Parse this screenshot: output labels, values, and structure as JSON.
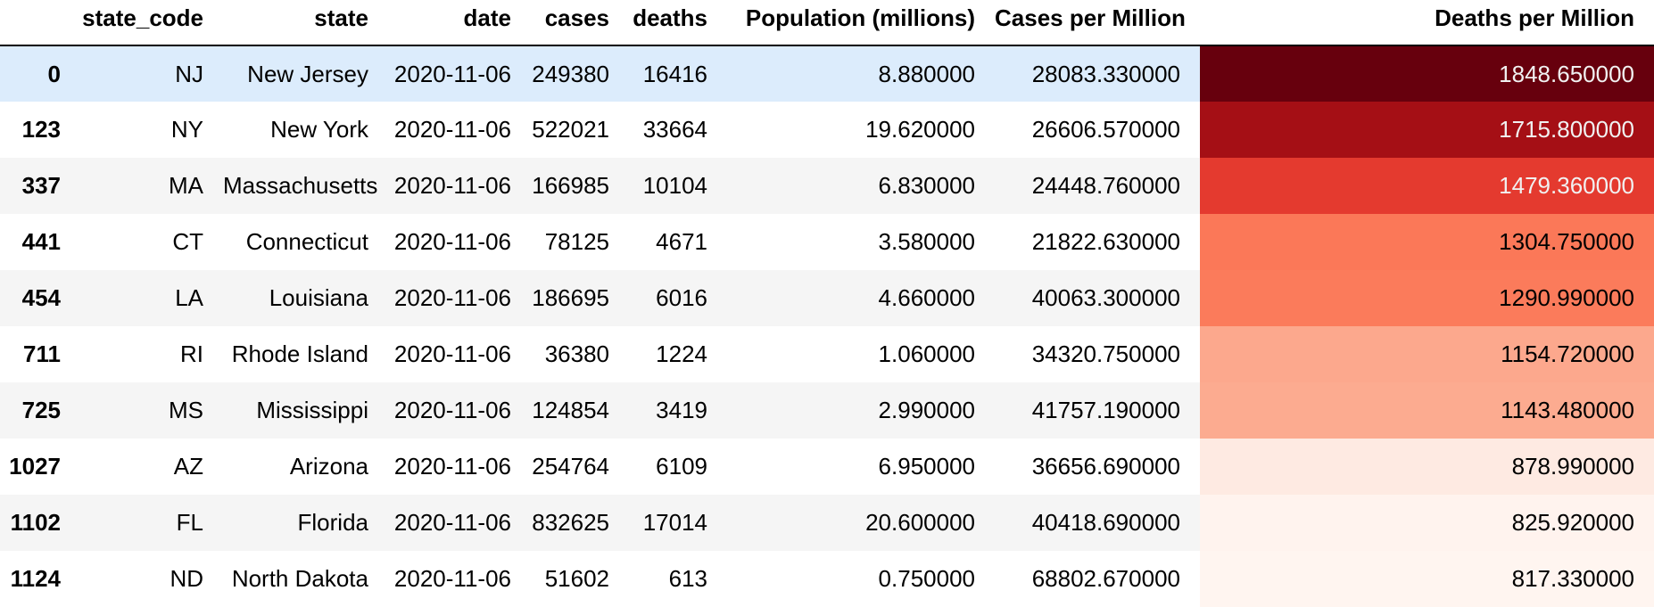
{
  "columns": {
    "index": "",
    "state_code": "state_code",
    "state": "state",
    "date": "date",
    "cases": "cases",
    "deaths": "deaths",
    "population": "Population (millions)",
    "cases_per_million": "Cases per Million",
    "deaths_per_million": "Deaths per Million"
  },
  "rows": [
    {
      "index": "0",
      "state_code": "NJ",
      "state": "New Jersey",
      "date": "2020-11-06",
      "cases": "249380",
      "deaths": "16416",
      "population": "8.880000",
      "cases_per_million": "28083.330000",
      "deaths_per_million": "1848.650000",
      "heat_bg": "#67000d",
      "heat_fg": "#f1f1f1"
    },
    {
      "index": "123",
      "state_code": "NY",
      "state": "New York",
      "date": "2020-11-06",
      "cases": "522021",
      "deaths": "33664",
      "population": "19.620000",
      "cases_per_million": "26606.570000",
      "deaths_per_million": "1715.800000",
      "heat_bg": "#a50f15",
      "heat_fg": "#f1f1f1"
    },
    {
      "index": "337",
      "state_code": "MA",
      "state": "Massachusetts",
      "date": "2020-11-06",
      "cases": "166985",
      "deaths": "10104",
      "population": "6.830000",
      "cases_per_million": "24448.760000",
      "deaths_per_million": "1479.360000",
      "heat_bg": "#e43a2f",
      "heat_fg": "#f1f1f1"
    },
    {
      "index": "441",
      "state_code": "CT",
      "state": "Connecticut",
      "date": "2020-11-06",
      "cases": "78125",
      "deaths": "4671",
      "population": "3.580000",
      "cases_per_million": "21822.630000",
      "deaths_per_million": "1304.750000",
      "heat_bg": "#fb7858",
      "heat_fg": "#000000"
    },
    {
      "index": "454",
      "state_code": "LA",
      "state": "Louisiana",
      "date": "2020-11-06",
      "cases": "186695",
      "deaths": "6016",
      "population": "4.660000",
      "cases_per_million": "40063.300000",
      "deaths_per_million": "1290.990000",
      "heat_bg": "#fb7b5b",
      "heat_fg": "#000000"
    },
    {
      "index": "711",
      "state_code": "RI",
      "state": "Rhode Island",
      "date": "2020-11-06",
      "cases": "36380",
      "deaths": "1224",
      "population": "1.060000",
      "cases_per_million": "34320.750000",
      "deaths_per_million": "1154.720000",
      "heat_bg": "#fca88d",
      "heat_fg": "#000000"
    },
    {
      "index": "725",
      "state_code": "MS",
      "state": "Mississippi",
      "date": "2020-11-06",
      "cases": "124854",
      "deaths": "3419",
      "population": "2.990000",
      "cases_per_million": "41757.190000",
      "deaths_per_million": "1143.480000",
      "heat_bg": "#fcab90",
      "heat_fg": "#000000"
    },
    {
      "index": "1027",
      "state_code": "AZ",
      "state": "Arizona",
      "date": "2020-11-06",
      "cases": "254764",
      "deaths": "6109",
      "population": "6.950000",
      "cases_per_million": "36656.690000",
      "deaths_per_million": "878.990000",
      "heat_bg": "#feeae2",
      "heat_fg": "#000000"
    },
    {
      "index": "1102",
      "state_code": "FL",
      "state": "Florida",
      "date": "2020-11-06",
      "cases": "832625",
      "deaths": "17014",
      "population": "20.600000",
      "cases_per_million": "40418.690000",
      "deaths_per_million": "825.920000",
      "heat_bg": "#fff3ee",
      "heat_fg": "#000000"
    },
    {
      "index": "1124",
      "state_code": "ND",
      "state": "North Dakota",
      "date": "2020-11-06",
      "cases": "51602",
      "deaths": "613",
      "population": "0.750000",
      "cases_per_million": "68802.670000",
      "deaths_per_million": "817.330000",
      "heat_bg": "#fff5f0",
      "heat_fg": "#000000"
    }
  ],
  "hover_row": 0
}
